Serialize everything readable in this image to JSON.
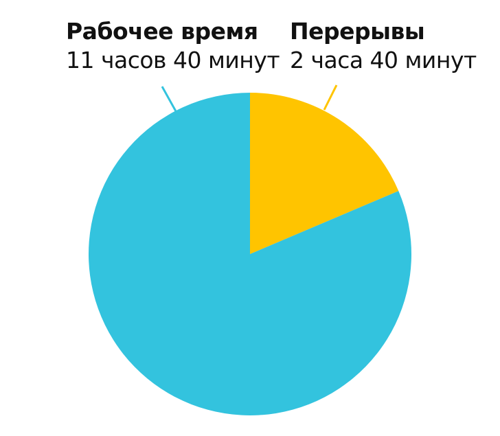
{
  "chart_data": {
    "type": "pie",
    "title": "",
    "start_angle_deg": 0,
    "direction": "clockwise",
    "slices": [
      {
        "label": "Перерывы",
        "value_text": "2 часа 40 минут",
        "value": 160,
        "color": "#FFC400"
      },
      {
        "label": "Рабочее время",
        "value_text": "11 часов 40 минут",
        "value": 700,
        "color": "#33C3DE"
      }
    ]
  }
}
